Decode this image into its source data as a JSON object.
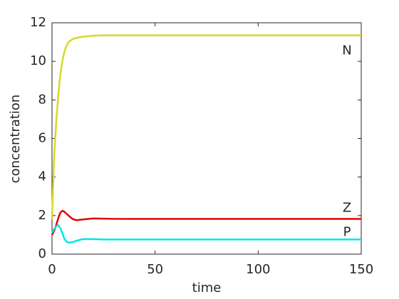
{
  "chart_data": {
    "type": "line",
    "x_label": "time",
    "y_label": "concentration",
    "x": [
      0,
      1,
      2,
      3,
      4,
      5,
      6,
      7,
      8,
      10,
      12,
      15,
      20,
      25,
      30,
      40,
      50,
      60,
      80,
      100,
      120,
      150
    ],
    "series": [
      {
        "name": "N",
        "color": "#d8d826",
        "values": [
          1.8,
          5.0,
          6.8,
          8.2,
          9.3,
          10.0,
          10.5,
          10.8,
          11.0,
          11.15,
          11.22,
          11.28,
          11.33,
          11.35,
          11.35,
          11.35,
          11.35,
          11.35,
          11.35,
          11.35,
          11.35,
          11.35
        ]
      },
      {
        "name": "Z",
        "color": "#e60000",
        "values": [
          1.0,
          1.2,
          1.5,
          1.85,
          2.15,
          2.25,
          2.2,
          2.1,
          2.0,
          1.82,
          1.76,
          1.8,
          1.85,
          1.84,
          1.83,
          1.83,
          1.83,
          1.83,
          1.83,
          1.83,
          1.83,
          1.83
        ]
      },
      {
        "name": "P",
        "color": "#00e6e6",
        "values": [
          1.1,
          1.3,
          1.45,
          1.5,
          1.35,
          1.1,
          0.8,
          0.65,
          0.6,
          0.62,
          0.7,
          0.78,
          0.78,
          0.76,
          0.76,
          0.76,
          0.76,
          0.76,
          0.76,
          0.76,
          0.76,
          0.76
        ]
      }
    ],
    "xlim": [
      0,
      150
    ],
    "xticks": [
      0,
      50,
      100,
      150
    ],
    "ylim": [
      0,
      12
    ],
    "yticks": [
      0,
      2,
      4,
      6,
      8,
      10,
      12
    ]
  }
}
